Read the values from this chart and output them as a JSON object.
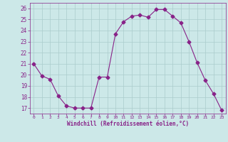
{
  "x": [
    0,
    1,
    2,
    3,
    4,
    5,
    6,
    7,
    8,
    9,
    10,
    11,
    12,
    13,
    14,
    15,
    16,
    17,
    18,
    19,
    20,
    21,
    22,
    23
  ],
  "y": [
    21.0,
    19.9,
    19.6,
    18.1,
    17.2,
    17.0,
    17.0,
    17.0,
    19.8,
    19.8,
    23.7,
    24.8,
    25.3,
    25.4,
    25.2,
    25.9,
    25.9,
    25.3,
    24.7,
    23.0,
    21.1,
    19.5,
    18.3,
    16.8
  ],
  "xlim": [
    -0.5,
    23.5
  ],
  "ylim": [
    16.5,
    26.5
  ],
  "yticks": [
    17,
    18,
    19,
    20,
    21,
    22,
    23,
    24,
    25,
    26
  ],
  "xticks": [
    0,
    1,
    2,
    3,
    4,
    5,
    6,
    7,
    8,
    9,
    10,
    11,
    12,
    13,
    14,
    15,
    16,
    17,
    18,
    19,
    20,
    21,
    22,
    23
  ],
  "xlabel": "Windchill (Refroidissement éolien,°C)",
  "line_color": "#882288",
  "marker": "D",
  "marker_size": 2.5,
  "bg_color": "#cce8e8",
  "grid_color": "#aacccc",
  "tick_color": "#882288",
  "label_color": "#882288"
}
